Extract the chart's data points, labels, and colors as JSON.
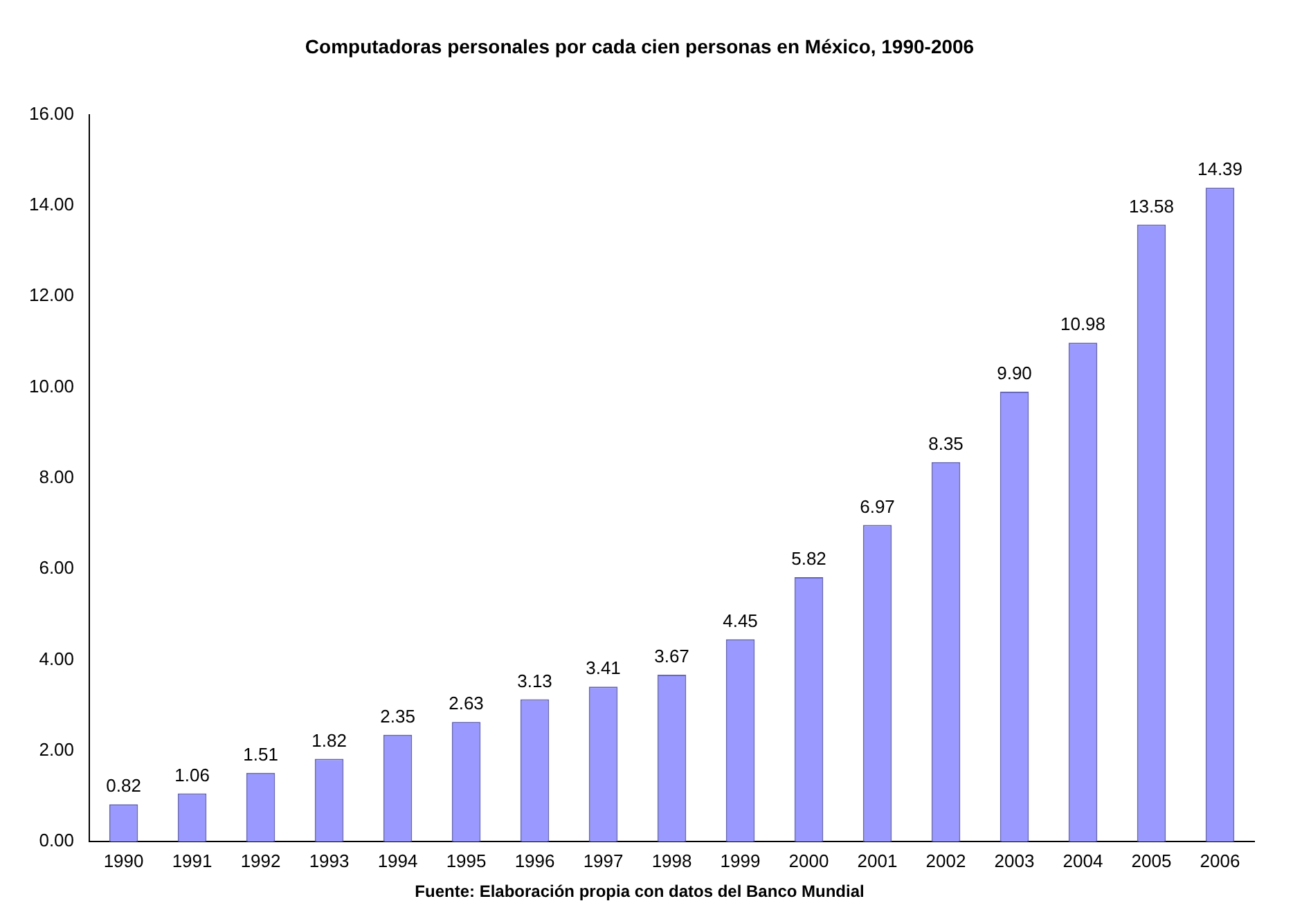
{
  "chart_data": {
    "type": "bar",
    "title": "Computadoras personales por cada cien personas en México, 1990-2006",
    "categories": [
      "1990",
      "1991",
      "1992",
      "1993",
      "1994",
      "1995",
      "1996",
      "1997",
      "1998",
      "1999",
      "2000",
      "2001",
      "2002",
      "2003",
      "2004",
      "2005",
      "2006"
    ],
    "values": [
      0.82,
      1.06,
      1.51,
      1.82,
      2.35,
      2.63,
      3.13,
      3.41,
      3.67,
      4.45,
      5.82,
      6.97,
      8.35,
      9.9,
      10.98,
      13.58,
      14.39
    ],
    "value_labels": [
      "0.82",
      "1.06",
      "1.51",
      "1.82",
      "2.35",
      "2.63",
      "3.13",
      "3.41",
      "3.67",
      "4.45",
      "5.82",
      "6.97",
      "8.35",
      "9.90",
      "10.98",
      "13.58",
      "14.39"
    ],
    "color": "#9999ff",
    "ylim": [
      0,
      16
    ],
    "yticks": [
      {
        "value": 0,
        "label": "0.00"
      },
      {
        "value": 2,
        "label": "2.00"
      },
      {
        "value": 4,
        "label": "4.00"
      },
      {
        "value": 6,
        "label": "6.00"
      },
      {
        "value": 8,
        "label": "8.00"
      },
      {
        "value": 10,
        "label": "10.00"
      },
      {
        "value": 12,
        "label": "12.00"
      },
      {
        "value": 14,
        "label": "14.00"
      },
      {
        "value": 16,
        "label": "16.00"
      }
    ],
    "grid": false,
    "legend": false,
    "annotations": [
      "Fuente: Elaboración propia con datos del Banco Mundial"
    ]
  }
}
